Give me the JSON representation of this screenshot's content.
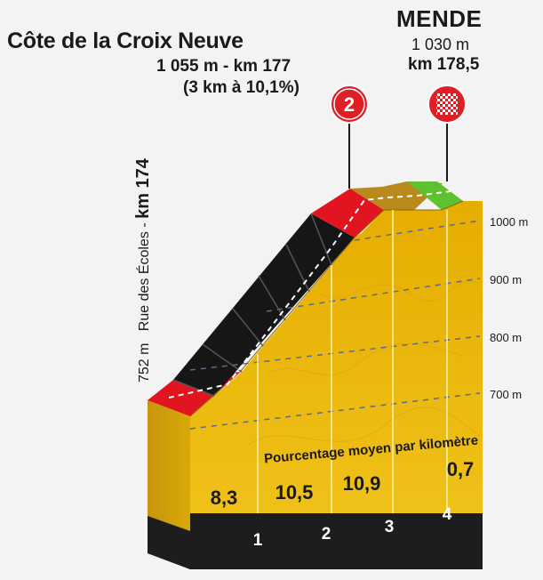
{
  "climb": {
    "name": "Côte de la Croix Neuve",
    "altitude_km": "1 055 m - km 177",
    "gradient": "(3 km à 10,1%)",
    "category_badge": "2"
  },
  "finish": {
    "name": "MENDE",
    "altitude": "1 030 m",
    "km": "km 178,5"
  },
  "start": {
    "altitude": "752 m",
    "street": "Rue des Écoles",
    "km": "km 174"
  },
  "altitude_scale": {
    "unit": "m",
    "lines": [
      "1000 m",
      "900 m",
      "800 m",
      "700 m"
    ]
  },
  "gradient_caption": "Pourcentage moyen par kilomètre",
  "km_gradients": [
    "8,3",
    "10,5",
    "10,9",
    "0,7"
  ],
  "km_markers": [
    "1",
    "2",
    "3",
    "4"
  ],
  "colors": {
    "background": "#f3f3f3",
    "face": "#e8b400",
    "badge_red": "#e01e25",
    "segment_red": "#e2141f",
    "segment_black": "#161616",
    "segment_brown": "#b88a1c",
    "segment_green": "#5fc12f",
    "base_black": "#1d1d1d"
  },
  "icons": [
    "category-2-badge-icon",
    "finish-checkered-flag-icon"
  ]
}
